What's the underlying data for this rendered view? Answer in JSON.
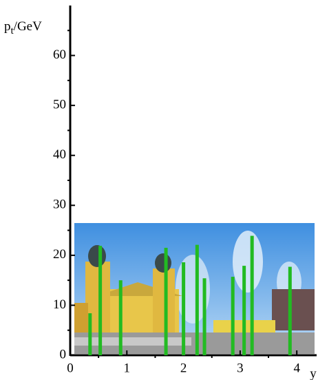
{
  "chart_data": {
    "type": "bar",
    "ylabel_parts": [
      "p",
      "t",
      "/GeV"
    ],
    "xlabel": "y",
    "x": [
      0.35,
      0.53,
      0.89,
      1.69,
      2.0,
      2.24,
      2.37,
      2.87,
      3.07,
      3.21,
      3.88
    ],
    "values": [
      8.4,
      21.9,
      15.0,
      21.5,
      18.6,
      22.1,
      15.4,
      15.7,
      17.9,
      23.9,
      17.7
    ],
    "color": "#22bb22",
    "xlim": [
      0,
      4.35
    ],
    "ylim": [
      0,
      70
    ],
    "xticks": [
      0,
      1,
      2,
      3,
      4
    ],
    "yticks": [
      0,
      10,
      20,
      30,
      40,
      50,
      60
    ],
    "xticks_minor": [
      0.5,
      1.5,
      2.5,
      3.5
    ],
    "yticks_minor": [
      5,
      15,
      25,
      35,
      45,
      55,
      65
    ]
  }
}
